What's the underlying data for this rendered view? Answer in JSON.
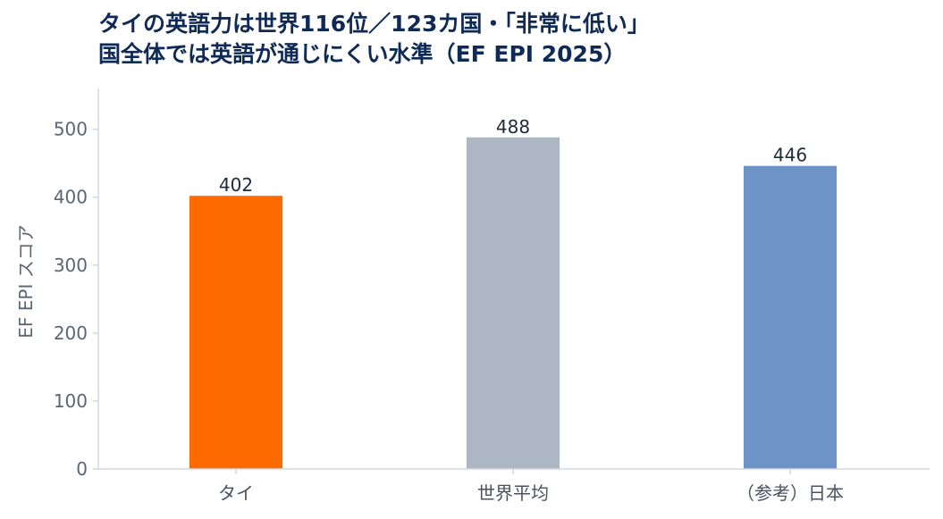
{
  "title_line1": "タイの英語力は世界116位／123カ国・「非常に低い」",
  "title_line2": "国全体では英語が通じにくい水準（EF EPI 2025）",
  "chart_data": {
    "type": "bar",
    "categories": [
      "タイ",
      "世界平均",
      "（参考）日本"
    ],
    "values": [
      402,
      488,
      446
    ],
    "data_labels": [
      "402",
      "488",
      "446"
    ],
    "colors": [
      "#ff6a00",
      "#adb7c4",
      "#6e93c6"
    ],
    "ylabel": "EF EPI スコア",
    "xlabel": "",
    "ylim": [
      0,
      560
    ],
    "yticks": [
      0,
      100,
      200,
      300,
      400,
      500
    ],
    "grid": false,
    "legend": "none"
  }
}
